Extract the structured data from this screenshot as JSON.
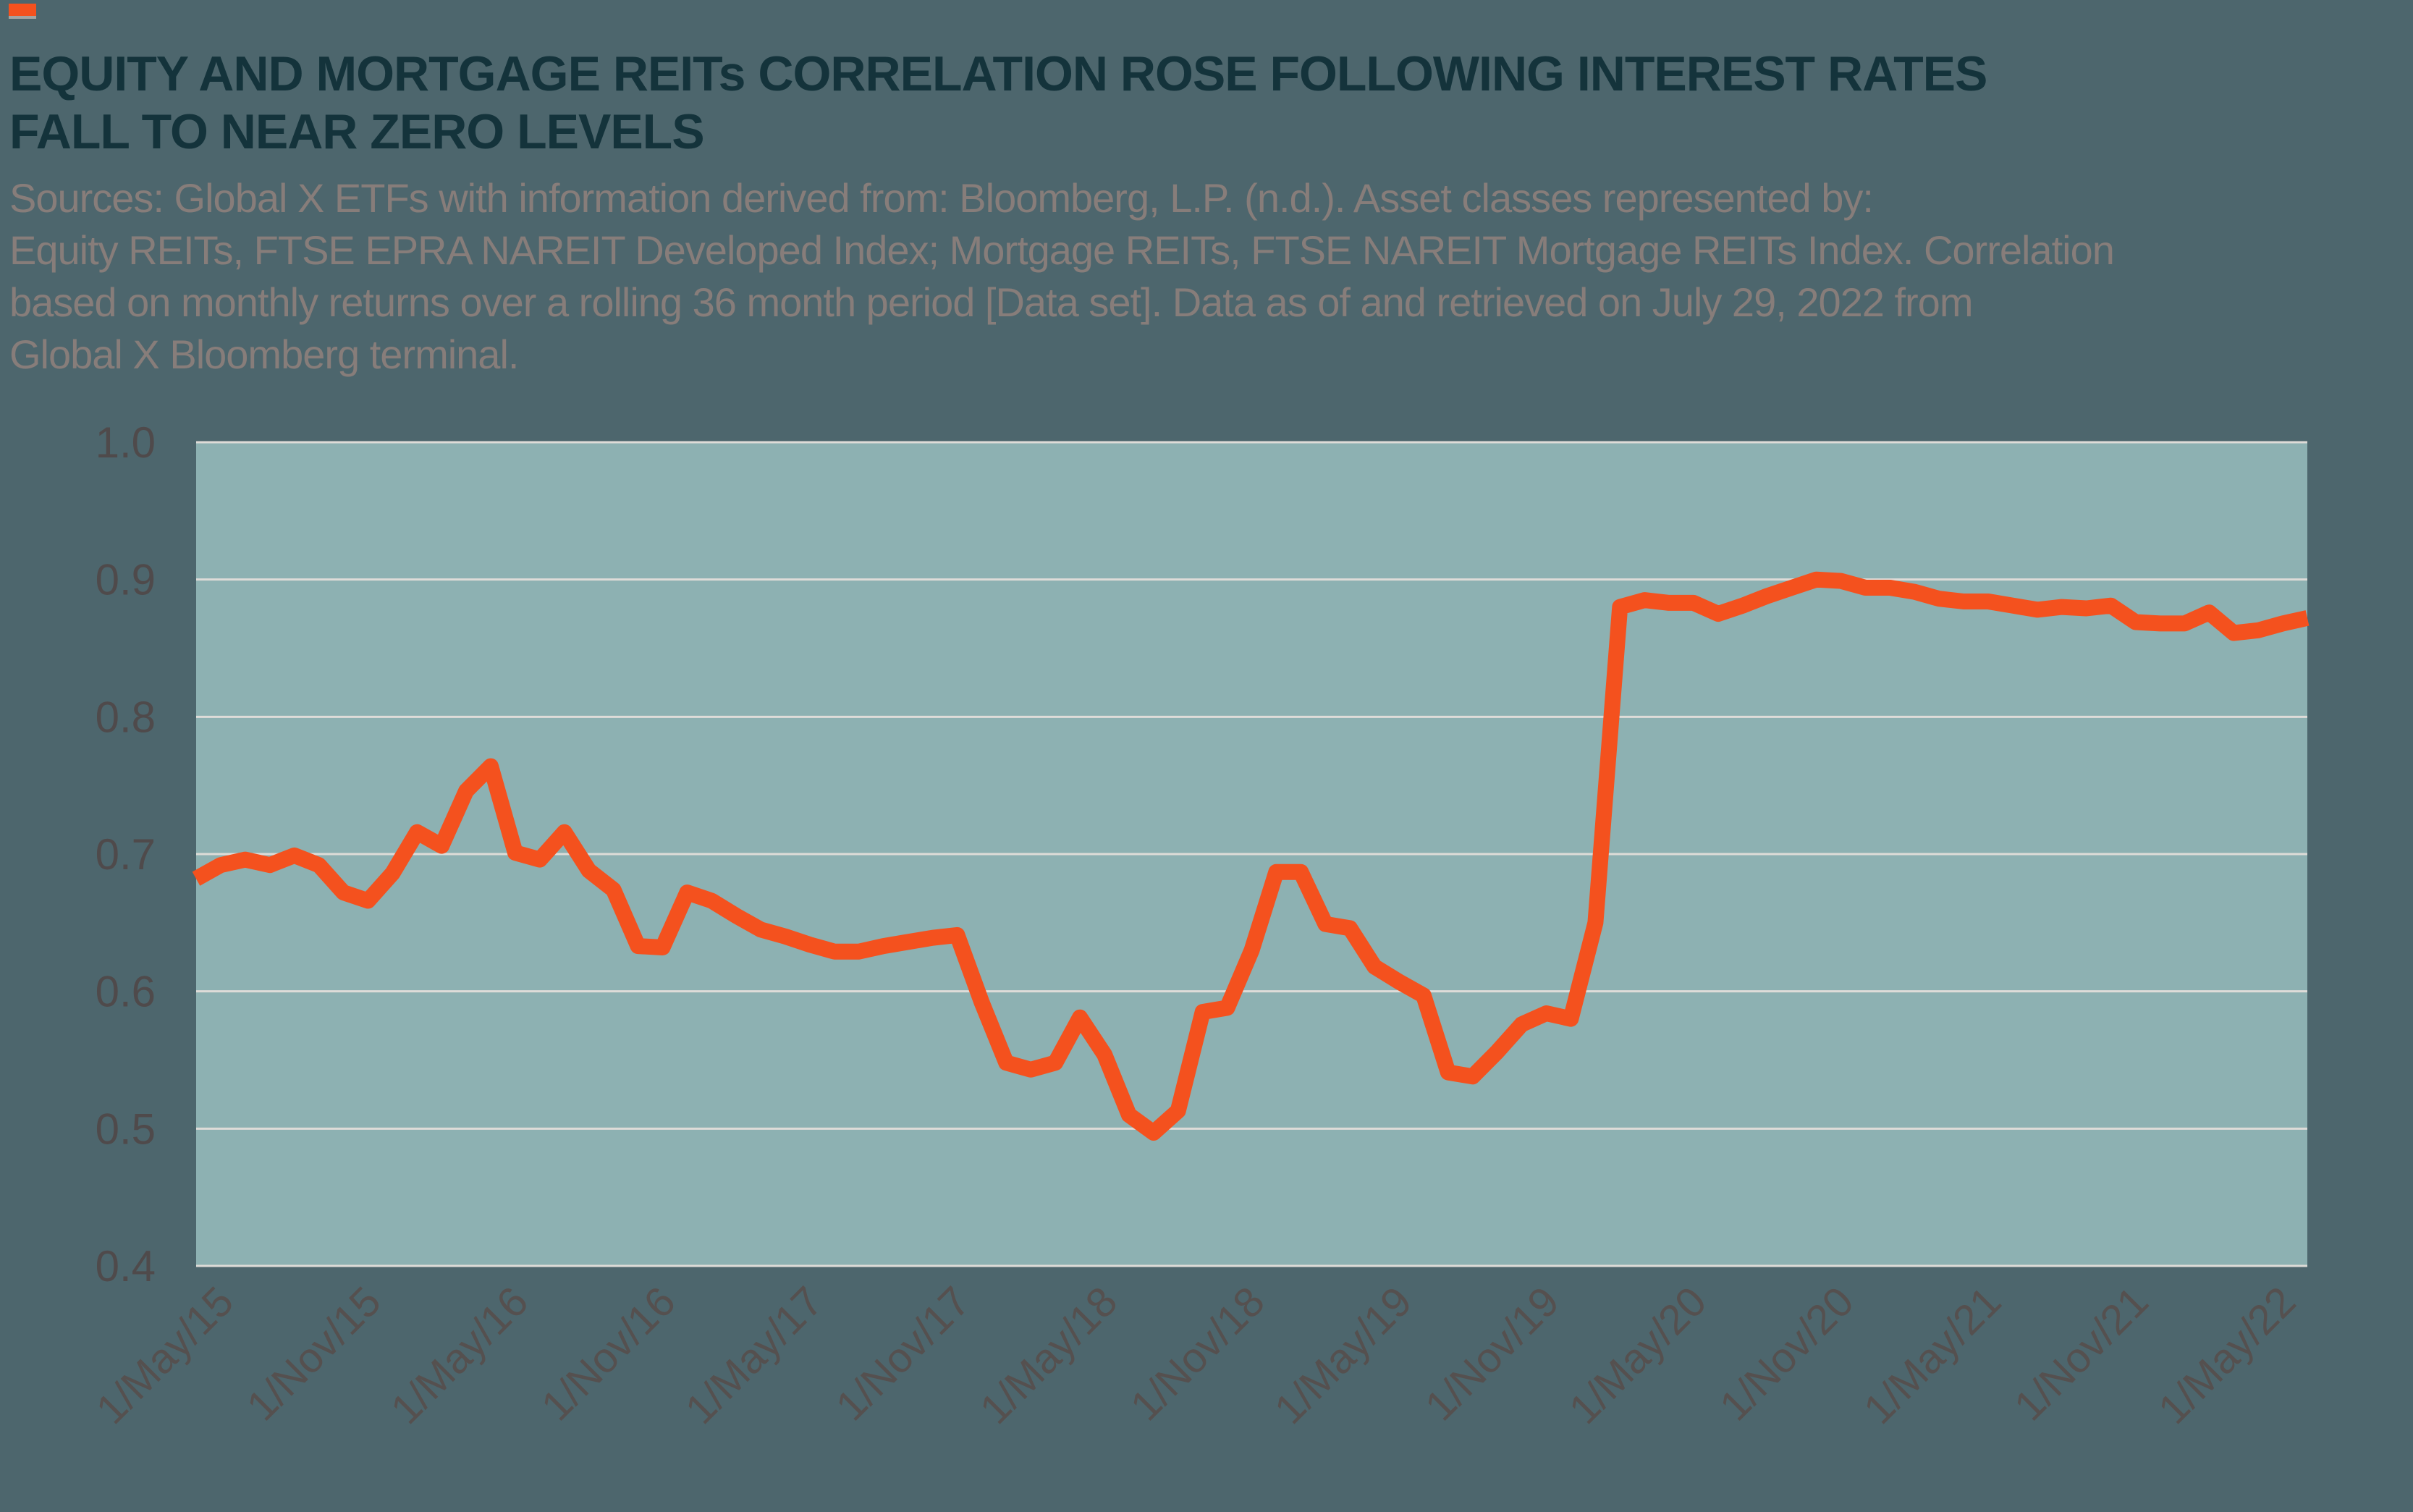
{
  "brand": {
    "accent_color": "#f4511e",
    "mark": "orange-bar"
  },
  "header": {
    "title_line1": "EQUITY AND MORTGAGE REITs CORRELATION ROSE FOLLOWING INTEREST RATES",
    "title_line2": "FALL TO NEAR ZERO LEVELS",
    "source_lines": [
      "Sources: Global X ETFs with information derived from: Bloomberg, L.P. (n.d.). Asset classes represented by:",
      "Equity REITs, FTSE EPRA NAREIT Developed Index; Mortgage REITs, FTSE NAREIT Mortgage REITs Index. Correlation",
      "based on monthly returns over a rolling 36 month period [Data set]. Data as of and retrieved on July 29, 2022 from",
      "Global X Bloomberg terminal."
    ]
  },
  "chart_data": {
    "type": "line",
    "title": "",
    "xlabel": "",
    "ylabel": "",
    "ylim": [
      0.4,
      1.0
    ],
    "grid": true,
    "legend_position": "none",
    "plot_bg_color": "#8db1b2",
    "gridline_color": "#dedcd8",
    "line_color": "#f4511e",
    "axis_label_color": "#55504f",
    "y_tick_labels": [
      "1.0",
      "0.9",
      "0.8",
      "0.7",
      "0.6",
      "0.5",
      "0.4"
    ],
    "y_ticks": [
      1.0,
      0.9,
      0.8,
      0.7,
      0.6,
      0.5,
      0.4
    ],
    "x_tick_labels": [
      "1/May/15",
      "1/Nov/15",
      "1/May/16",
      "1/Nov/16",
      "1/May/17",
      "1/Nov/17",
      "1/May/18",
      "1/Nov/18",
      "1/May/19",
      "1/Nov/19",
      "1/May/20",
      "1/Nov/20",
      "1/May/21",
      "1/Nov/21",
      "1/May/22"
    ],
    "x_tick_month_indexes": [
      0,
      6,
      12,
      18,
      24,
      30,
      36,
      42,
      48,
      54,
      60,
      66,
      72,
      78,
      84
    ],
    "x": [
      "May-15",
      "Jun-15",
      "Jul-15",
      "Aug-15",
      "Sep-15",
      "Oct-15",
      "Nov-15",
      "Dec-15",
      "Jan-16",
      "Feb-16",
      "Mar-16",
      "Apr-16",
      "May-16",
      "Jun-16",
      "Jul-16",
      "Aug-16",
      "Sep-16",
      "Oct-16",
      "Nov-16",
      "Dec-16",
      "Jan-17",
      "Feb-17",
      "Mar-17",
      "Apr-17",
      "May-17",
      "Jun-17",
      "Jul-17",
      "Aug-17",
      "Sep-17",
      "Oct-17",
      "Nov-17",
      "Dec-17",
      "Jan-18",
      "Feb-18",
      "Mar-18",
      "Apr-18",
      "May-18",
      "Jun-18",
      "Jul-18",
      "Aug-18",
      "Sep-18",
      "Oct-18",
      "Nov-18",
      "Dec-18",
      "Jan-19",
      "Feb-19",
      "Mar-19",
      "Apr-19",
      "May-19",
      "Jun-19",
      "Jul-19",
      "Aug-19",
      "Sep-19",
      "Oct-19",
      "Nov-19",
      "Dec-19",
      "Jan-20",
      "Feb-20",
      "Mar-20",
      "Apr-20",
      "May-20",
      "Jun-20",
      "Jul-20",
      "Aug-20",
      "Sep-20",
      "Oct-20",
      "Nov-20",
      "Dec-20",
      "Jan-21",
      "Feb-21",
      "Mar-21",
      "Apr-21",
      "May-21",
      "Jun-21",
      "Jul-21",
      "Aug-21",
      "Sep-21",
      "Oct-21",
      "Nov-21",
      "Dec-21",
      "Jan-22",
      "Feb-22",
      "Mar-22",
      "Apr-22",
      "May-22",
      "Jun-22",
      "Jul-22"
    ],
    "series": [
      {
        "name": "Equity and Mortgage REITs correlation (rolling 36-month)",
        "values": [
          0.682,
          0.692,
          0.696,
          0.692,
          0.699,
          0.692,
          0.672,
          0.666,
          0.686,
          0.716,
          0.706,
          0.746,
          0.764,
          0.701,
          0.696,
          0.716,
          0.688,
          0.674,
          0.633,
          0.632,
          0.672,
          0.666,
          0.655,
          0.645,
          0.64,
          0.634,
          0.629,
          0.629,
          0.633,
          0.636,
          0.639,
          0.641,
          0.592,
          0.548,
          0.543,
          0.548,
          0.581,
          0.554,
          0.51,
          0.497,
          0.513,
          0.585,
          0.588,
          0.63,
          0.687,
          0.687,
          0.649,
          0.646,
          0.618,
          0.607,
          0.597,
          0.541,
          0.538,
          0.556,
          0.576,
          0.584,
          0.58,
          0.65,
          0.88,
          0.885,
          0.883,
          0.883,
          0.875,
          0.881,
          0.888,
          0.894,
          0.9,
          0.899,
          0.894,
          0.894,
          0.891,
          0.886,
          0.884,
          0.884,
          0.881,
          0.878,
          0.88,
          0.879,
          0.881,
          0.869,
          0.868,
          0.868,
          0.876,
          0.861,
          0.863,
          0.868,
          0.872
        ]
      }
    ]
  }
}
